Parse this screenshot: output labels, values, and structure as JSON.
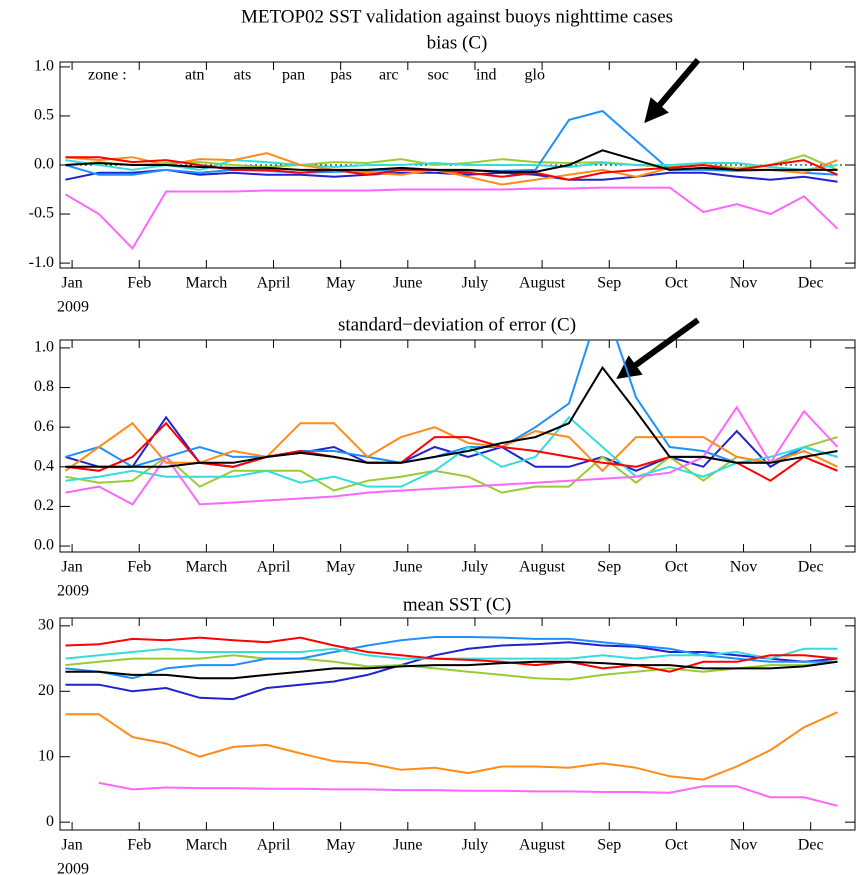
{
  "chart_data": [
    {
      "type": "line",
      "title": "METOP02 SST    validation against buoys    nighttime cases",
      "subtitle": "bias (C)",
      "legend_title": "zone :",
      "legend": "upper left",
      "hline": 0,
      "x_sublabel": "2009",
      "x": [
        0.9,
        1.4,
        1.9,
        2.4,
        2.9,
        3.4,
        3.9,
        4.4,
        4.9,
        5.4,
        5.9,
        6.4,
        6.9,
        7.4,
        7.9,
        8.4,
        8.9,
        9.4,
        9.9,
        10.4,
        10.9,
        11.4,
        11.9,
        12.4
      ],
      "xlim": [
        0.82,
        12.66
      ],
      "xticks": [
        {
          "value": 1,
          "label": "Jan"
        },
        {
          "value": 2,
          "label": "Feb"
        },
        {
          "value": 3,
          "label": "March"
        },
        {
          "value": 4,
          "label": "April"
        },
        {
          "value": 5,
          "label": "May"
        },
        {
          "value": 6,
          "label": "June"
        },
        {
          "value": 7,
          "label": "July"
        },
        {
          "value": 8,
          "label": "August"
        },
        {
          "value": 9,
          "label": "Sep"
        },
        {
          "value": 10,
          "label": "Oct"
        },
        {
          "value": 11,
          "label": "Nov"
        },
        {
          "value": 12,
          "label": "Dec"
        }
      ],
      "ylim": [
        -1.05,
        1.05
      ],
      "yticks": [
        {
          "value": -1,
          "label": "-1.0"
        },
        {
          "value": -0.5,
          "label": "-0.5"
        },
        {
          "value": 0,
          "label": "0.0"
        },
        {
          "value": 0.5,
          "label": "0.5"
        },
        {
          "value": 1,
          "label": "1.0"
        }
      ],
      "series": [
        {
          "name": "atn",
          "color": "#2222cc",
          "values": [
            -0.15,
            -0.08,
            -0.08,
            -0.05,
            -0.1,
            -0.08,
            -0.1,
            -0.1,
            -0.12,
            -0.1,
            -0.08,
            -0.08,
            -0.1,
            -0.08,
            -0.1,
            -0.15,
            -0.15,
            -0.12,
            -0.08,
            -0.08,
            -0.12,
            -0.15,
            -0.12,
            -0.17
          ]
        },
        {
          "name": "ats",
          "color": "#99cc33",
          "values": [
            0.0,
            0.03,
            0.0,
            0.02,
            0.03,
            0.0,
            -0.02,
            0.0,
            0.03,
            0.02,
            0.06,
            0.0,
            0.02,
            0.06,
            0.03,
            0.02,
            0.03,
            0.0,
            -0.02,
            0.0,
            -0.03,
            0.0,
            0.1,
            -0.05
          ]
        },
        {
          "name": "pan",
          "color": "#1e90ff",
          "values": [
            0.0,
            -0.1,
            -0.1,
            -0.05,
            -0.08,
            -0.05,
            -0.06,
            -0.08,
            -0.07,
            -0.06,
            -0.05,
            -0.05,
            -0.06,
            -0.06,
            -0.05,
            0.46,
            0.55,
            0.25,
            -0.05,
            -0.05,
            -0.06,
            -0.05,
            -0.08,
            -0.1
          ]
        },
        {
          "name": "pas",
          "color": "#33dddd",
          "values": [
            0.05,
            0.0,
            -0.05,
            0.0,
            -0.05,
            0.05,
            0.03,
            0.0,
            -0.02,
            0.0,
            0.0,
            0.02,
            0.0,
            0.0,
            0.0,
            -0.02,
            0.02,
            0.0,
            0.0,
            0.02,
            0.02,
            -0.02,
            -0.05,
            0.0
          ]
        },
        {
          "name": "arc",
          "color": "#ff66ff",
          "values": [
            -0.3,
            -0.5,
            -0.85,
            -0.27,
            -0.27,
            -0.27,
            -0.26,
            -0.26,
            -0.26,
            -0.26,
            -0.25,
            -0.25,
            -0.25,
            -0.25,
            -0.24,
            -0.24,
            -0.23,
            -0.23,
            -0.23,
            -0.48,
            -0.4,
            -0.5,
            -0.32,
            -0.65
          ]
        },
        {
          "name": "soc",
          "color": "#ff8c1a",
          "values": [
            0.08,
            0.05,
            0.08,
            0.0,
            0.06,
            0.05,
            0.12,
            0.0,
            -0.05,
            -0.08,
            -0.1,
            -0.05,
            -0.12,
            -0.2,
            -0.15,
            -0.1,
            -0.05,
            -0.12,
            -0.03,
            0.0,
            -0.05,
            -0.05,
            -0.08,
            0.05
          ]
        },
        {
          "name": "ind",
          "color": "#ff0000",
          "values": [
            0.08,
            0.08,
            0.03,
            0.05,
            0.0,
            -0.05,
            -0.05,
            -0.08,
            -0.05,
            -0.1,
            -0.05,
            -0.05,
            -0.08,
            -0.12,
            -0.08,
            -0.15,
            -0.08,
            -0.05,
            -0.03,
            0.0,
            -0.05,
            0.0,
            0.05,
            -0.1
          ]
        },
        {
          "name": "glo",
          "color": "#000000",
          "values": [
            0.0,
            0.02,
            0.0,
            0.0,
            -0.02,
            -0.03,
            -0.03,
            -0.05,
            -0.05,
            -0.05,
            -0.03,
            -0.05,
            -0.05,
            -0.07,
            -0.07,
            0.0,
            0.15,
            0.05,
            -0.05,
            -0.03,
            -0.05,
            -0.05,
            -0.05,
            -0.05
          ]
        }
      ]
    },
    {
      "type": "line",
      "title": "standard−deviation of error (C)",
      "x_sublabel": "2009",
      "x": [
        0.9,
        1.4,
        1.9,
        2.4,
        2.9,
        3.4,
        3.9,
        4.4,
        4.9,
        5.4,
        5.9,
        6.4,
        6.9,
        7.4,
        7.9,
        8.4,
        8.9,
        9.4,
        9.9,
        10.4,
        10.9,
        11.4,
        11.9,
        12.4
      ],
      "xlim": [
        0.82,
        12.66
      ],
      "xticks": [
        {
          "value": 1,
          "label": "Jan"
        },
        {
          "value": 2,
          "label": "Feb"
        },
        {
          "value": 3,
          "label": "March"
        },
        {
          "value": 4,
          "label": "April"
        },
        {
          "value": 5,
          "label": "May"
        },
        {
          "value": 6,
          "label": "June"
        },
        {
          "value": 7,
          "label": "July"
        },
        {
          "value": 8,
          "label": "August"
        },
        {
          "value": 9,
          "label": "Sep"
        },
        {
          "value": 10,
          "label": "Oct"
        },
        {
          "value": 11,
          "label": "Nov"
        },
        {
          "value": 12,
          "label": "Dec"
        }
      ],
      "ylim": [
        -0.03,
        1.04
      ],
      "yticks": [
        {
          "value": 0,
          "label": "0.0"
        },
        {
          "value": 0.2,
          "label": "0.2"
        },
        {
          "value": 0.4,
          "label": "0.4"
        },
        {
          "value": 0.6,
          "label": "0.6"
        },
        {
          "value": 0.8,
          "label": "0.8"
        },
        {
          "value": 1,
          "label": "1.0"
        }
      ],
      "series": [
        {
          "color": "#2222cc",
          "values": [
            0.45,
            0.4,
            0.4,
            0.65,
            0.42,
            0.4,
            0.45,
            0.47,
            0.5,
            0.42,
            0.42,
            0.5,
            0.45,
            0.5,
            0.4,
            0.4,
            0.45,
            0.38,
            0.45,
            0.4,
            0.58,
            0.4,
            0.5,
            0.45
          ]
        },
        {
          "color": "#99cc33",
          "values": [
            0.35,
            0.32,
            0.33,
            0.45,
            0.3,
            0.38,
            0.38,
            0.38,
            0.28,
            0.33,
            0.35,
            0.38,
            0.35,
            0.27,
            0.3,
            0.3,
            0.45,
            0.32,
            0.45,
            0.33,
            0.45,
            0.42,
            0.5,
            0.55
          ]
        },
        {
          "color": "#1e90ff",
          "values": [
            0.45,
            0.5,
            0.4,
            0.45,
            0.5,
            0.45,
            0.45,
            0.48,
            0.48,
            0.45,
            0.42,
            0.45,
            0.5,
            0.5,
            0.6,
            0.72,
            1.25,
            0.75,
            0.5,
            0.48,
            0.42,
            0.42,
            0.5,
            0.45
          ]
        },
        {
          "color": "#33dddd",
          "values": [
            0.33,
            0.35,
            0.38,
            0.35,
            0.35,
            0.35,
            0.38,
            0.32,
            0.35,
            0.3,
            0.3,
            0.38,
            0.5,
            0.4,
            0.45,
            0.65,
            0.5,
            0.35,
            0.4,
            0.35,
            0.42,
            0.45,
            0.5,
            0.45
          ]
        },
        {
          "color": "#ff66ff",
          "values": [
            0.27,
            0.3,
            0.21,
            0.45,
            0.21,
            0.22,
            0.23,
            0.24,
            0.25,
            0.27,
            0.28,
            0.29,
            0.3,
            0.31,
            0.32,
            0.33,
            0.34,
            0.35,
            0.37,
            0.45,
            0.7,
            0.42,
            0.68,
            0.5
          ]
        },
        {
          "color": "#ff8c1a",
          "values": [
            0.38,
            0.5,
            0.62,
            0.42,
            0.42,
            0.48,
            0.45,
            0.62,
            0.62,
            0.45,
            0.55,
            0.6,
            0.52,
            0.5,
            0.58,
            0.55,
            0.38,
            0.55,
            0.55,
            0.55,
            0.45,
            0.42,
            0.48,
            0.4
          ]
        },
        {
          "color": "#ff0000",
          "values": [
            0.4,
            0.38,
            0.45,
            0.62,
            0.42,
            0.4,
            0.45,
            0.48,
            0.45,
            0.42,
            0.42,
            0.55,
            0.55,
            0.5,
            0.48,
            0.45,
            0.42,
            0.4,
            0.45,
            0.45,
            0.42,
            0.33,
            0.45,
            0.38
          ]
        },
        {
          "color": "#000000",
          "values": [
            0.4,
            0.4,
            0.4,
            0.4,
            0.42,
            0.42,
            0.45,
            0.47,
            0.45,
            0.42,
            0.42,
            0.45,
            0.48,
            0.52,
            0.55,
            0.62,
            0.9,
            0.68,
            0.45,
            0.45,
            0.42,
            0.42,
            0.45,
            0.48
          ]
        }
      ]
    },
    {
      "type": "line",
      "title": "mean SST (C)",
      "x_sublabel": "2009",
      "x": [
        0.9,
        1.4,
        1.9,
        2.4,
        2.9,
        3.4,
        3.9,
        4.4,
        4.9,
        5.4,
        5.9,
        6.4,
        6.9,
        7.4,
        7.9,
        8.4,
        8.9,
        9.4,
        9.9,
        10.4,
        10.9,
        11.4,
        11.9,
        12.4
      ],
      "xlim": [
        0.82,
        12.66
      ],
      "xticks": [
        {
          "value": 1,
          "label": "Jan"
        },
        {
          "value": 2,
          "label": "Feb"
        },
        {
          "value": 3,
          "label": "March"
        },
        {
          "value": 4,
          "label": "April"
        },
        {
          "value": 5,
          "label": "May"
        },
        {
          "value": 6,
          "label": "June"
        },
        {
          "value": 7,
          "label": "July"
        },
        {
          "value": 8,
          "label": "August"
        },
        {
          "value": 9,
          "label": "Sep"
        },
        {
          "value": 10,
          "label": "Oct"
        },
        {
          "value": 11,
          "label": "Nov"
        },
        {
          "value": 12,
          "label": "Dec"
        }
      ],
      "ylim": [
        -1.2,
        31.2
      ],
      "yticks": [
        0,
        10,
        20,
        30
      ],
      "series": [
        {
          "color": "#2222cc",
          "values": [
            21,
            21,
            20,
            20.5,
            19,
            18.8,
            20.5,
            21,
            21.5,
            22.5,
            24,
            25.5,
            26.5,
            27,
            27.2,
            27.5,
            27,
            26.8,
            26,
            26,
            25.5,
            25,
            24.5,
            25
          ]
        },
        {
          "color": "#99cc33",
          "values": [
            24,
            24.5,
            25,
            25,
            25,
            25.5,
            25,
            25,
            24.5,
            23.8,
            24,
            23.5,
            23,
            22.5,
            22,
            21.8,
            22.5,
            23,
            23.5,
            23,
            23.5,
            24,
            24,
            24.5
          ]
        },
        {
          "color": "#1e90ff",
          "values": [
            23.5,
            23,
            22,
            23.5,
            24,
            24,
            25,
            25,
            26,
            27,
            27.8,
            28.3,
            28.3,
            28.2,
            28,
            28,
            27.5,
            27,
            26.5,
            25.5,
            25,
            24.5,
            24.5,
            24.5
          ]
        },
        {
          "color": "#33dddd",
          "values": [
            25,
            25.5,
            26,
            26.5,
            26,
            26,
            26,
            26,
            26.5,
            25.5,
            25,
            25,
            25,
            25,
            25,
            25,
            25.5,
            25,
            25.5,
            25.5,
            26,
            25,
            26.5,
            26.5
          ]
        },
        {
          "color": "#ff66ff",
          "values": [
            null,
            6,
            5,
            5.3,
            5.2,
            5.2,
            5.1,
            5.1,
            5.0,
            5.0,
            4.9,
            4.9,
            4.8,
            4.8,
            4.7,
            4.7,
            4.6,
            4.6,
            4.5,
            5.5,
            5.5,
            3.8,
            3.8,
            2.5
          ]
        },
        {
          "color": "#ff8c1a",
          "values": [
            16.5,
            16.5,
            13,
            12,
            10,
            11.5,
            11.8,
            10.5,
            9.3,
            9,
            8,
            8.3,
            7.5,
            8.5,
            8.5,
            8.3,
            9,
            8.3,
            7,
            6.5,
            8.5,
            11,
            14.5,
            16.8
          ]
        },
        {
          "color": "#ff0000",
          "values": [
            27,
            27.2,
            28,
            27.8,
            28.2,
            27.8,
            27.5,
            28.2,
            27,
            26,
            25.5,
            25,
            24.8,
            24.5,
            24,
            24.5,
            23.5,
            24,
            23,
            24.5,
            24.5,
            25.5,
            25.5,
            25
          ]
        },
        {
          "color": "#000000",
          "values": [
            23,
            23,
            22.5,
            22.5,
            22,
            22,
            22.5,
            23,
            23.5,
            23.5,
            23.8,
            24,
            24,
            24.3,
            24.5,
            24.5,
            24.3,
            24,
            24,
            23.5,
            23.5,
            23.5,
            23.8,
            24.5
          ]
        }
      ]
    }
  ]
}
